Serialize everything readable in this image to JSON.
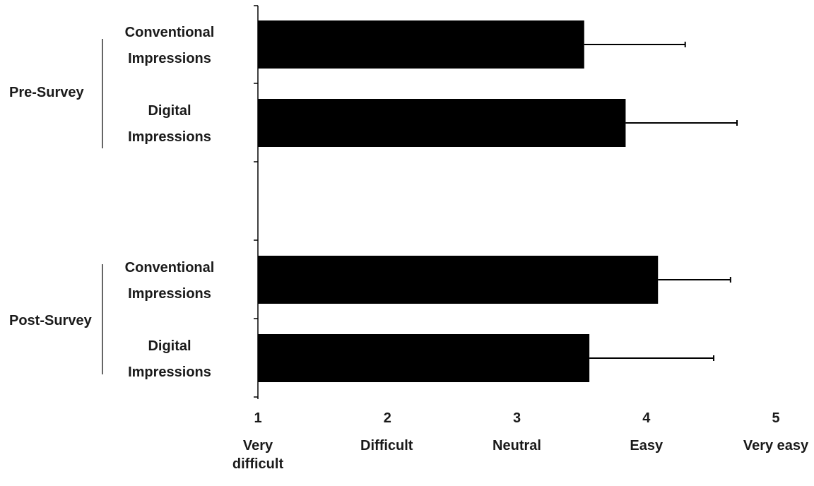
{
  "chart_data": {
    "type": "bar",
    "orientation": "horizontal",
    "groups": [
      {
        "label": "Pre-Survey",
        "bars": [
          {
            "label_lines": [
              "Conventional",
              "Impressions"
            ],
            "value": 3.52,
            "error": 0.78
          },
          {
            "label_lines": [
              "Digital",
              "Impressions"
            ],
            "value": 3.84,
            "error": 0.86
          }
        ]
      },
      {
        "label": "Post-Survey",
        "bars": [
          {
            "label_lines": [
              "Conventional",
              "Impressions"
            ],
            "value": 4.09,
            "error": 0.56
          },
          {
            "label_lines": [
              "Digital",
              "Impressions"
            ],
            "value": 3.56,
            "error": 0.96
          }
        ]
      }
    ],
    "x_ticks": [
      1,
      2,
      3,
      4,
      5
    ],
    "x_tick_descriptions": [
      [
        "Very",
        "difficult"
      ],
      [
        "Difficult"
      ],
      [
        "Neutral"
      ],
      [
        "Easy"
      ],
      [
        "Very easy"
      ]
    ],
    "xlim": [
      1,
      5
    ],
    "grid": false,
    "legend": "none",
    "bar_color": "#000000"
  }
}
